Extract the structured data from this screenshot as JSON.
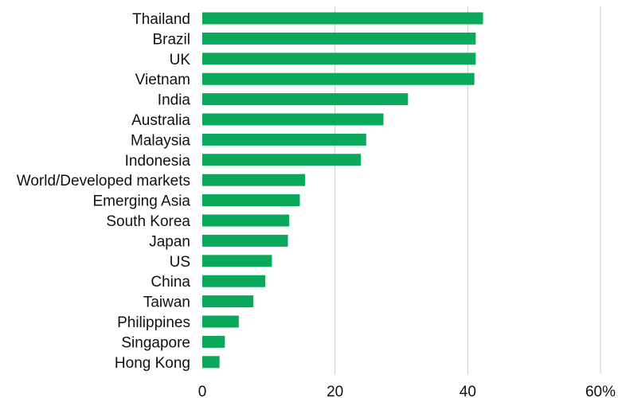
{
  "chart_data": {
    "type": "bar",
    "orientation": "horizontal",
    "categories": [
      "Thailand",
      "Brazil",
      "UK",
      "Vietnam",
      "India",
      "Australia",
      "Malaysia",
      "Indonesia",
      "World/Developed markets",
      "Emerging Asia",
      "South Korea",
      "Japan",
      "US",
      "China",
      "Taiwan",
      "Philippines",
      "Singapore",
      "Hong Kong"
    ],
    "values": [
      42.3,
      41.2,
      41.2,
      41.0,
      31.0,
      27.3,
      24.7,
      23.9,
      15.5,
      14.7,
      13.1,
      12.9,
      10.5,
      9.5,
      7.7,
      5.5,
      3.4,
      2.6
    ],
    "xlim": [
      0,
      60
    ],
    "xticks": [
      0,
      20,
      40,
      60
    ],
    "xtick_labels": [
      "0",
      "20",
      "40",
      "60%"
    ],
    "grid": true,
    "bar_color": "#0aa85a",
    "grid_color": "#cccccc"
  }
}
